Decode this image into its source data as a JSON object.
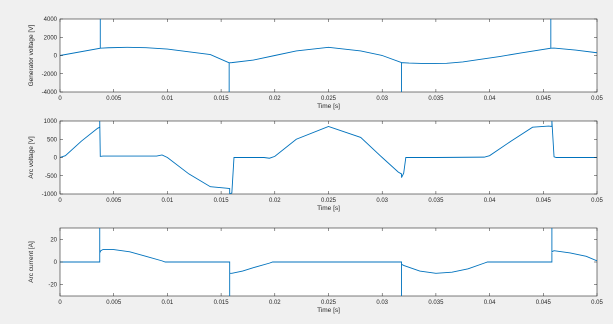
{
  "window": {
    "background": "#f0f0f0"
  },
  "chart_data": [
    {
      "type": "line",
      "ylabel": "Generator voltage [V]",
      "xlabel": "Time [s]",
      "xlim": [
        0,
        0.05
      ],
      "ylim": [
        -4000,
        4000
      ],
      "xticks": [
        0,
        0.005,
        0.01,
        0.015,
        0.02,
        0.025,
        0.03,
        0.035,
        0.04,
        0.045,
        0.05
      ],
      "xtick_labels": [
        "0",
        "0.005",
        "0.01",
        "0.015",
        "0.02",
        "0.025",
        "0.03",
        "0.035",
        "0.04",
        "0.045",
        "0.05"
      ],
      "yticks": [
        -4000,
        -2000,
        0,
        2000,
        4000
      ],
      "ytick_labels": [
        "-4000",
        "-2000",
        "0",
        "2000",
        "4000"
      ],
      "grid": false,
      "color": "#0072bd",
      "series": [
        {
          "x": [
            0,
            0.00375,
            0.00375,
            0.00375,
            0.004,
            0.0045,
            0.00625,
            0.008,
            0.01,
            0.012,
            0.014,
            0.01575,
            0.01575,
            0.01575,
            0.016,
            0.018,
            0.02,
            0.022,
            0.025,
            0.028,
            0.03,
            0.0318,
            0.0318,
            0.0318,
            0.0325,
            0.034,
            0.036,
            0.0375,
            0.039,
            0.041,
            0.043,
            0.0457,
            0.0457,
            0.0457,
            0.046,
            0.048,
            0.05
          ],
          "values": [
            0,
            800,
            4000,
            800,
            820,
            850,
            900,
            860,
            700,
            400,
            100,
            -800,
            -4000,
            -800,
            -780,
            -500,
            0,
            500,
            900,
            500,
            0,
            -780,
            -4000,
            -780,
            -830,
            -880,
            -860,
            -700,
            -450,
            -100,
            300,
            800,
            4000,
            800,
            820,
            600,
            300
          ]
        }
      ]
    },
    {
      "type": "line",
      "ylabel": "Arc voltage [V]",
      "xlabel": "Time [s]",
      "xlim": [
        0,
        0.05
      ],
      "ylim": [
        -1000,
        1000
      ],
      "xticks": [
        0,
        0.005,
        0.01,
        0.015,
        0.02,
        0.025,
        0.03,
        0.035,
        0.04,
        0.045,
        0.05
      ],
      "xtick_labels": [
        "0",
        "0.005",
        "0.01",
        "0.015",
        "0.02",
        "0.025",
        "0.03",
        "0.035",
        "0.04",
        "0.045",
        "0.05"
      ],
      "yticks": [
        -1000,
        -500,
        0,
        500,
        1000
      ],
      "ytick_labels": [
        "-1000",
        "-500",
        "0",
        "500",
        "1000"
      ],
      "grid": false,
      "color": "#0072bd",
      "series": [
        {
          "x": [
            0,
            0.0005,
            0.002,
            0.0035,
            0.0037,
            0.0037,
            0.00375,
            0.004,
            0.006,
            0.009,
            0.0095,
            0.01,
            0.012,
            0.014,
            0.0155,
            0.0158,
            0.0158,
            0.016,
            0.0162,
            0.019,
            0.0195,
            0.02,
            0.022,
            0.025,
            0.028,
            0.03,
            0.0315,
            0.0318,
            0.0318,
            0.032,
            0.0322,
            0.035,
            0.0395,
            0.04,
            0.042,
            0.044,
            0.0455,
            0.0458,
            0.0458,
            0.046,
            0.0462,
            0.048,
            0.05
          ],
          "values": [
            0,
            50,
            450,
            800,
            830,
            1000,
            30,
            40,
            40,
            40,
            70,
            0,
            -450,
            -800,
            -840,
            -850,
            -1000,
            -970,
            0,
            0,
            -20,
            30,
            500,
            850,
            550,
            0,
            -400,
            -450,
            -550,
            -430,
            0,
            0,
            10,
            50,
            450,
            830,
            860,
            850,
            1000,
            20,
            0,
            0,
            0
          ]
        }
      ]
    },
    {
      "type": "line",
      "ylabel": "Arc current [A]",
      "xlabel": "Time [s]",
      "xlim": [
        0,
        0.05
      ],
      "ylim": [
        -30,
        30
      ],
      "xticks": [
        0,
        0.005,
        0.01,
        0.015,
        0.02,
        0.025,
        0.03,
        0.035,
        0.04,
        0.045,
        0.05
      ],
      "xtick_labels": [
        "0",
        "0.005",
        "0.01",
        "0.015",
        "0.02",
        "0.025",
        "0.03",
        "0.035",
        "0.04",
        "0.045",
        "0.05"
      ],
      "yticks": [
        -20,
        0,
        20
      ],
      "ytick_labels": [
        "-20",
        "0",
        "20"
      ],
      "grid": false,
      "color": "#0072bd",
      "series": [
        {
          "x": [
            0,
            0.0037,
            0.0037,
            0.0037,
            0.0038,
            0.004,
            0.005,
            0.0065,
            0.008,
            0.0095,
            0.0098,
            0.0158,
            0.0158,
            0.0158,
            0.016,
            0.017,
            0.018,
            0.0195,
            0.0198,
            0.0318,
            0.0318,
            0.0318,
            0.032,
            0.0335,
            0.035,
            0.0365,
            0.038,
            0.0395,
            0.0398,
            0.0458,
            0.0458,
            0.0458,
            0.046,
            0.0475,
            0.049,
            0.05
          ],
          "values": [
            0,
            0,
            30,
            8,
            10,
            11,
            11,
            9,
            5,
            1,
            0,
            0,
            -30,
            -10,
            -10,
            -8,
            -5,
            -1,
            0,
            0,
            -30,
            -2,
            -3,
            -8,
            -10,
            -9,
            -6,
            -1,
            0,
            0,
            30,
            9,
            10,
            8,
            5,
            1
          ]
        }
      ]
    }
  ]
}
